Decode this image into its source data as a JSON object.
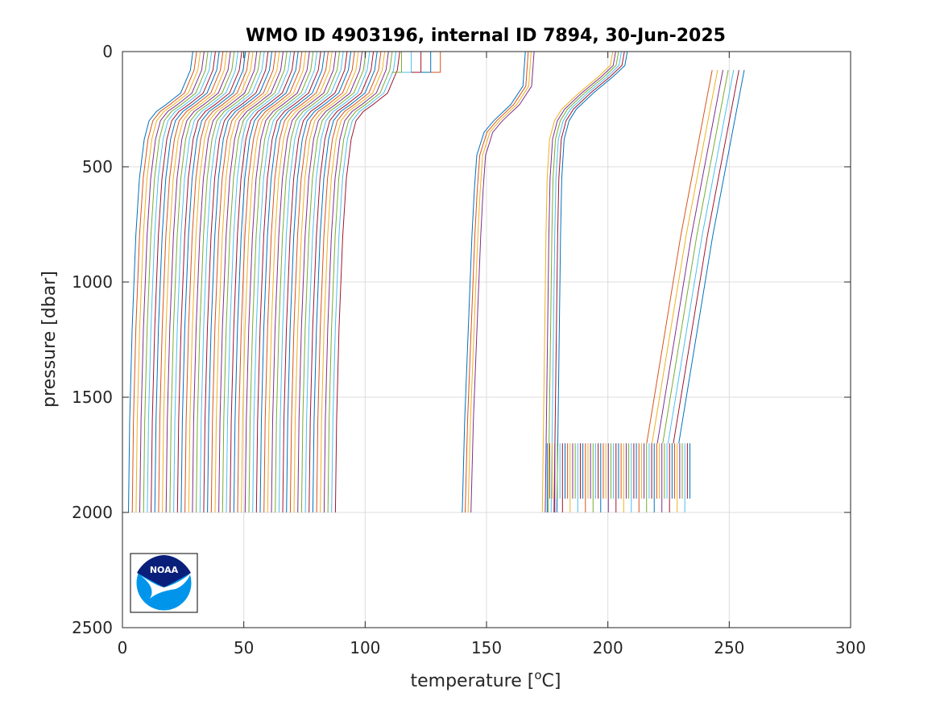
{
  "chart_data": {
    "type": "line",
    "title": "WMO ID 4903196, internal ID 7894, 30-Jun-2025",
    "xlabel": "temperature [",
    "xlabel_sup": "o",
    "xlabel_tail": "C]",
    "ylabel": "pressure [dbar]",
    "xlim": [
      0,
      300
    ],
    "ylim": [
      0,
      2500
    ],
    "y_reversed": true,
    "grid": true,
    "xticks": [
      0,
      50,
      100,
      150,
      200,
      250,
      300
    ],
    "yticks": [
      0,
      500,
      1000,
      1500,
      2000,
      2500
    ],
    "xtick_labels": [
      "0",
      "50",
      "100",
      "150",
      "200",
      "250",
      "300"
    ],
    "ytick_labels": [
      "0",
      "500",
      "1000",
      "1500",
      "2000",
      "2500"
    ],
    "colors": [
      "#0072bd",
      "#d95319",
      "#edb120",
      "#7e2f8e",
      "#77ac30",
      "#4dbeee",
      "#a2142f"
    ],
    "logo": {
      "name": "NOAA",
      "text": "NOAA"
    },
    "groups": [
      {
        "label": "main",
        "count": 56,
        "offset_start": 0,
        "offset_step": 1.55,
        "points": [
          [
            29,
            0
          ],
          [
            28,
            80
          ],
          [
            24,
            180
          ],
          [
            18,
            230
          ],
          [
            14,
            260
          ],
          [
            11,
            300
          ],
          [
            9,
            380
          ],
          [
            7,
            550
          ],
          [
            5.5,
            800
          ],
          [
            4,
            1200
          ],
          [
            3,
            1600
          ],
          [
            2.5,
            2000
          ]
        ]
      },
      {
        "label": "mid",
        "count": 4,
        "offset_start": 0,
        "offset_step": 1.2,
        "points": [
          [
            166,
            0
          ],
          [
            165,
            150
          ],
          [
            160,
            230
          ],
          [
            153,
            300
          ],
          [
            149,
            350
          ],
          [
            146,
            450
          ],
          [
            145,
            600
          ],
          [
            144,
            800
          ],
          [
            142.5,
            1200
          ],
          [
            141,
            1600
          ],
          [
            140,
            2000
          ]
        ]
      },
      {
        "label": "shallow",
        "count": 5,
        "offset_start": 0,
        "offset_step": 4,
        "points": [
          [
            115,
            0
          ],
          [
            115,
            90
          ],
          [
            111,
            90
          ]
        ]
      },
      {
        "label": "right",
        "count": 6,
        "offset_start": 0,
        "offset_step": 1.2,
        "points": [
          [
            202,
            0
          ],
          [
            201,
            60
          ],
          [
            196,
            110
          ],
          [
            188,
            180
          ],
          [
            181,
            250
          ],
          [
            178,
            300
          ],
          [
            176,
            380
          ],
          [
            175,
            550
          ],
          [
            174.5,
            800
          ],
          [
            174,
            1200
          ],
          [
            173.5,
            1600
          ],
          [
            173,
            2000
          ]
        ]
      },
      {
        "label": "far",
        "count": 7,
        "offset_start": 0,
        "offset_step": 2.2,
        "points": [
          [
            243,
            80
          ],
          [
            230,
            800
          ],
          [
            216,
            1700
          ]
        ]
      }
    ],
    "comb": {
      "x_start": 175,
      "x_end": 234,
      "step": 1.05,
      "y_top": 1700,
      "y_bottom_a": 1940,
      "y_bottom_b": 2000
    }
  }
}
